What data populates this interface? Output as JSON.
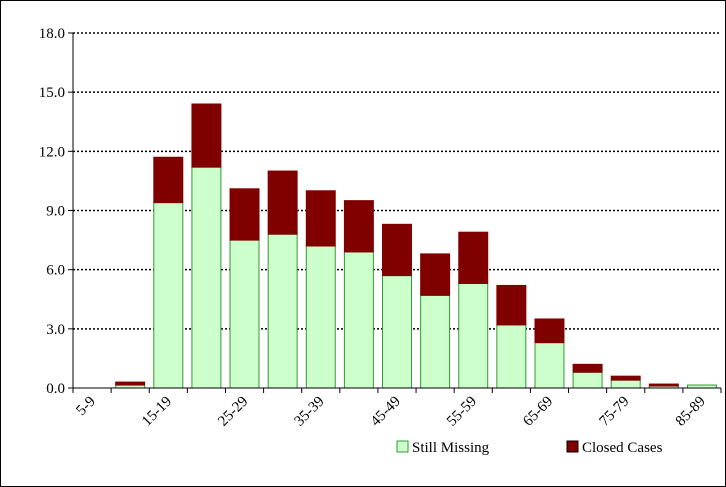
{
  "chart_data": {
    "type": "stacked_bar",
    "categories": [
      "5-9",
      null,
      "15-19",
      null,
      "25-29",
      null,
      "35-39",
      null,
      "45-49",
      null,
      "55-59",
      null,
      "65-69",
      null,
      "75-79",
      null,
      "85-89"
    ],
    "series": [
      {
        "name": "Still Missing",
        "color": "#ccffcc",
        "values": [
          0,
          0.15,
          9.4,
          11.2,
          7.5,
          7.8,
          7.2,
          6.9,
          5.7,
          4.7,
          5.3,
          3.2,
          2.3,
          0.8,
          0.4,
          0.1,
          0.15
        ]
      },
      {
        "name": "Closed Cases",
        "color": "#800000",
        "values": [
          0,
          0.15,
          2.3,
          3.2,
          2.6,
          3.2,
          2.8,
          2.6,
          2.6,
          2.1,
          2.6,
          2.0,
          1.2,
          0.4,
          0.2,
          0.1,
          0
        ]
      }
    ],
    "ylim": [
      0,
      18
    ],
    "yticks": [
      {
        "value": 0,
        "label": "0.0"
      },
      {
        "value": 3,
        "label": "3.0"
      },
      {
        "value": 6,
        "label": "6.0"
      },
      {
        "value": 9,
        "label": "9.0"
      },
      {
        "value": 12,
        "label": "12.0"
      },
      {
        "value": 15,
        "label": "15.0"
      },
      {
        "value": 18,
        "label": "18.0"
      }
    ],
    "grid": true,
    "legend": "bottom-right"
  }
}
